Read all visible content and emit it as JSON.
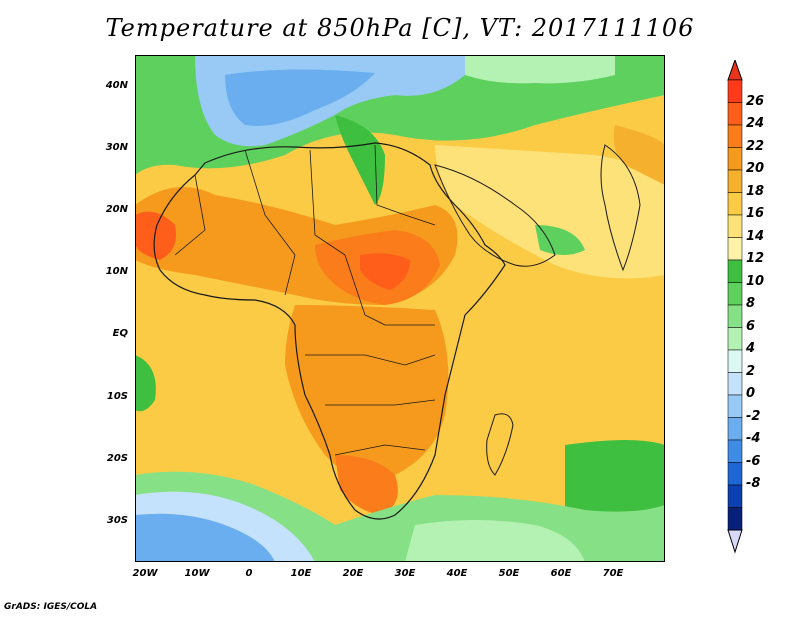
{
  "title": "Temperature at 850hPa [C], VT: 2017111106",
  "credit": "GrADS: IGES/COLA",
  "map": {
    "lat_labels": [
      "40N",
      "30N",
      "20N",
      "10N",
      "EQ",
      "10S",
      "20S",
      "30S"
    ],
    "lon_labels": [
      "20W",
      "10W",
      "0",
      "10E",
      "20E",
      "30E",
      "40E",
      "50E",
      "60E",
      "70E"
    ]
  },
  "colorbar": {
    "levels": [
      "26",
      "24",
      "22",
      "20",
      "18",
      "16",
      "14",
      "12",
      "10",
      "8",
      "6",
      "4",
      "2",
      "0",
      "-2",
      "-4",
      "-6",
      "-8"
    ],
    "colors": [
      "#ff3a1a",
      "#ff5e1a",
      "#fb7c1a",
      "#f69a1e",
      "#f5b02d",
      "#fbcb46",
      "#fde27a",
      "#fcf2a8",
      "#3fbf3f",
      "#5ed05e",
      "#86e086",
      "#b4f2b4",
      "#dbf8f2",
      "#c4e2fb",
      "#98caf5",
      "#6aaef0",
      "#3f8ce6",
      "#1f66d6",
      "#0c3fb0",
      "#07207a"
    ],
    "top_color": "#e8341a",
    "bottom_color": "#d8d8f8"
  }
}
